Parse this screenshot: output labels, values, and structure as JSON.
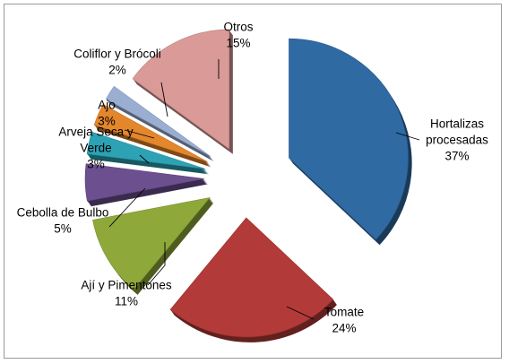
{
  "chart_data": {
    "type": "pie",
    "style": "exploded-3d",
    "slices": [
      {
        "name": "Hortalizas procesadas",
        "label_lines": [
          "Hortalizas",
          "procesadas"
        ],
        "value": 37,
        "value_label": "37%",
        "color": "#2f6aa3"
      },
      {
        "name": "Tomate",
        "label_lines": [
          "Tomate"
        ],
        "value": 24,
        "value_label": "24%",
        "color": "#b23a38"
      },
      {
        "name": "Aji y Pimentones",
        "label_lines": [
          "Ají y Pimentones"
        ],
        "value": 11,
        "value_label": "11%",
        "color": "#8fa83a"
      },
      {
        "name": "Cebolla de Bulbo",
        "label_lines": [
          "Cebolla de Bulbo"
        ],
        "value": 5,
        "value_label": "5%",
        "color": "#6c4f8f"
      },
      {
        "name": "Arveja Seca y Verde",
        "label_lines": [
          "Arveja Seca y",
          "Verde"
        ],
        "value": 3,
        "value_label": "3%",
        "color": "#2ca2b4"
      },
      {
        "name": "Ajo",
        "label_lines": [
          "Ajo"
        ],
        "value": 3,
        "value_label": "3%",
        "color": "#e4862c"
      },
      {
        "name": "Coliflor y Brocoli",
        "label_lines": [
          "Coliflor y Brócoli"
        ],
        "value": 2,
        "value_label": "2%",
        "color": "#9aaed2"
      },
      {
        "name": "Otros",
        "label_lines": [
          "Otros"
        ],
        "value": 15,
        "value_label": "15%",
        "color": "#d99a98"
      }
    ]
  }
}
